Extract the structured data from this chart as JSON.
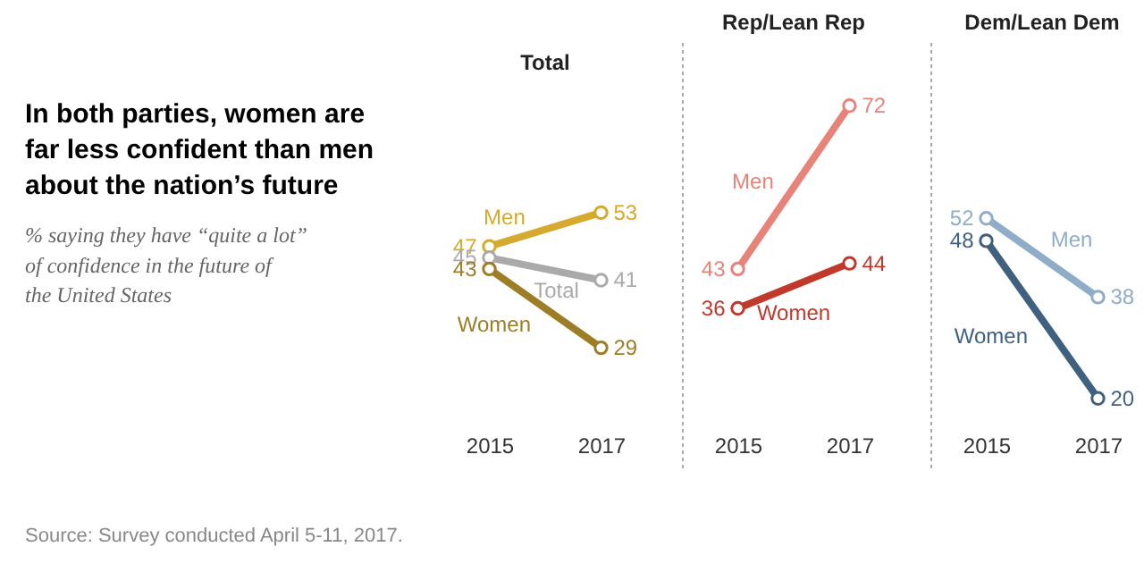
{
  "chart_data": [
    {
      "type": "other",
      "title": "In both parties, women are far less confident than men about the nation’s future",
      "subtitle": "% saying they have “quite a lot” of confidence in the future of the United States",
      "annotations": [
        "Source: Survey conducted April 5-11, 2017."
      ]
    },
    {
      "type": "line",
      "title": "Total",
      "categories": [
        "2015",
        "2017"
      ],
      "marker": "circle",
      "data_labels": true,
      "tick_labels": "x",
      "grid": false,
      "series": [
        {
          "name": "Men",
          "color": "#d6aa2f",
          "values": [
            47,
            53
          ]
        },
        {
          "name": "Total",
          "color": "#aaaaaa",
          "values": [
            45,
            41
          ]
        },
        {
          "name": "Women",
          "color": "#9e7d27",
          "values": [
            43,
            29
          ]
        }
      ]
    },
    {
      "type": "line",
      "title": "Rep/Lean Rep",
      "categories": [
        "2015",
        "2017"
      ],
      "marker": "circle",
      "data_labels": true,
      "tick_labels": "x",
      "grid": false,
      "series": [
        {
          "name": "Men",
          "color": "#e8837a",
          "values": [
            43,
            72
          ]
        },
        {
          "name": "Women",
          "color": "#c1392b",
          "values": [
            36,
            44
          ]
        }
      ]
    },
    {
      "type": "line",
      "title": "Dem/Lean Dem",
      "categories": [
        "2015",
        "2017"
      ],
      "marker": "circle",
      "data_labels": true,
      "tick_labels": "x",
      "grid": false,
      "series": [
        {
          "name": "Men",
          "color": "#8fadc8",
          "values": [
            52,
            38
          ]
        },
        {
          "name": "Women",
          "color": "#3f607e",
          "values": [
            48,
            20
          ]
        }
      ]
    }
  ]
}
